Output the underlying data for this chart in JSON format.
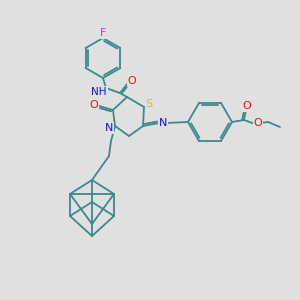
{
  "background_color": "#e0e0e0",
  "atom_colors": {
    "C": "#3a8a8a",
    "N": "#1010ee",
    "O": "#ee1010",
    "S": "#c8c800",
    "F": "#e020e0",
    "H": "#3a8a8a"
  },
  "bond_color": "#3a8a8a",
  "bond_width": 1.3,
  "figsize": [
    3.0,
    3.0
  ],
  "dpi": 100,
  "xlim": [
    0,
    300
  ],
  "ylim": [
    0,
    300
  ]
}
